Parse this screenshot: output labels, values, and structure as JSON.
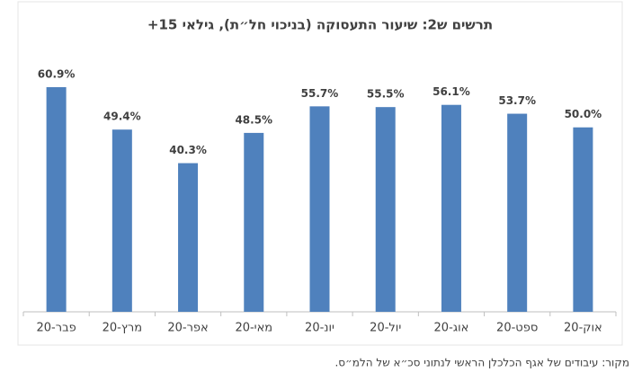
{
  "chart_data": {
    "type": "bar",
    "title": "תרשים ש2: שיעור התעסוקה (בניכוי חל״ת), גילאי 15+",
    "categories": [
      "פבר-20",
      "מרץ-20",
      "אפר-20",
      "מאי-20",
      "יונ-20",
      "יול-20",
      "אוג-20",
      "ספט-20",
      "אוק-20"
    ],
    "values": [
      60.9,
      49.4,
      40.3,
      48.5,
      55.7,
      55.5,
      56.1,
      53.7,
      50.0
    ],
    "value_labels": [
      "60.9%",
      "49.4%",
      "40.3%",
      "48.5%",
      "55.7%",
      "55.5%",
      "56.1%",
      "53.7%",
      "50.0%"
    ],
    "color": "#4f81bd",
    "source": "מקור: עיבודים של אגף הכלכלן הראשי לנתוני סכ״א של הלמ״ס."
  }
}
